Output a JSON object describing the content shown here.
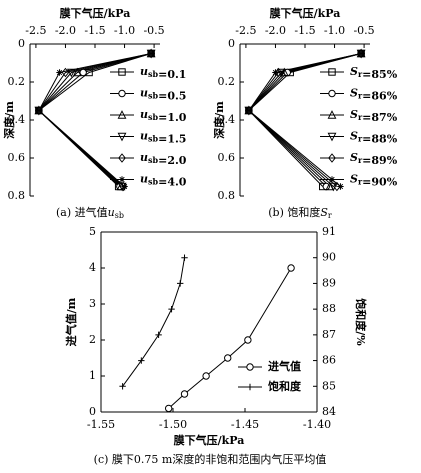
{
  "chart_data": [
    {
      "type": "line",
      "xlabel": "膜下气压/kPa",
      "ylabel": "深度/m",
      "caption": "(a) 进气值usb",
      "xaxis_position": "top",
      "y_inverted": true,
      "xlim": [
        -2.6,
        -0.4
      ],
      "xticks": [
        -2.5,
        {
          "value": -2.0,
          "label": "-2.0"
        },
        -1.5,
        {
          "value": -1.0,
          "label": "-1.0"
        },
        -0.5
      ],
      "ylim": [
        0,
        0.8
      ],
      "yticks": [
        0,
        0.2,
        0.4,
        0.6,
        0.8
      ],
      "series": [
        {
          "name": "usb=0.1",
          "marker": "square",
          "color": "#000000",
          "x": [
            -0.55,
            -1.6,
            -2.45,
            -1.1
          ],
          "values": [
            0.05,
            0.15,
            0.35,
            0.75
          ]
        },
        {
          "name": "usb=0.5",
          "marker": "circle",
          "color": "#000000",
          "x": [
            -0.55,
            -1.7,
            -2.45,
            -1.08
          ],
          "values": [
            0.05,
            0.15,
            0.35,
            0.75
          ]
        },
        {
          "name": "usb=1.0",
          "marker": "triangle-up",
          "color": "#000000",
          "x": [
            -0.55,
            -1.8,
            -2.45,
            -1.06
          ],
          "values": [
            0.05,
            0.15,
            0.35,
            0.75
          ]
        },
        {
          "name": "usb=1.5",
          "marker": "triangle-down",
          "color": "#000000",
          "x": [
            -0.55,
            -1.9,
            -2.45,
            -1.04
          ],
          "values": [
            0.05,
            0.15,
            0.35,
            0.75
          ]
        },
        {
          "name": "usb=2.0",
          "marker": "diamond",
          "color": "#000000",
          "x": [
            -0.55,
            -2.0,
            -2.45,
            -1.02
          ],
          "values": [
            0.05,
            0.15,
            0.35,
            0.75
          ]
        },
        {
          "name": "usb=4.0",
          "marker": "star",
          "color": "#000000",
          "x": [
            -0.55,
            -2.1,
            -2.45,
            -1.0
          ],
          "values": [
            0.05,
            0.15,
            0.35,
            0.75
          ]
        }
      ]
    },
    {
      "type": "line",
      "xlabel": "膜下气压/kPa",
      "ylabel": "深度/m",
      "caption": "(b) 饱和度Sr",
      "xaxis_position": "top",
      "y_inverted": true,
      "xlim": [
        -2.6,
        -0.4
      ],
      "xticks": [
        -2.5,
        {
          "value": -2.0,
          "label": "-2.0"
        },
        -1.5,
        {
          "value": -1.0,
          "label": "-1.0"
        },
        -0.5
      ],
      "ylim": [
        0,
        0.8
      ],
      "yticks": [
        0,
        0.2,
        0.4,
        0.6,
        0.8
      ],
      "series": [
        {
          "name": "Sr=85%",
          "marker": "square",
          "color": "#000000",
          "x": [
            -0.55,
            -1.75,
            -2.45,
            -1.2
          ],
          "values": [
            0.05,
            0.15,
            0.35,
            0.75
          ]
        },
        {
          "name": "Sr=86%",
          "marker": "circle",
          "color": "#000000",
          "x": [
            -0.55,
            -1.8,
            -2.45,
            -1.14
          ],
          "values": [
            0.05,
            0.15,
            0.35,
            0.75
          ]
        },
        {
          "name": "Sr=87%",
          "marker": "triangle-up",
          "color": "#000000",
          "x": [
            -0.55,
            -1.85,
            -2.45,
            -1.08
          ],
          "values": [
            0.05,
            0.15,
            0.35,
            0.75
          ]
        },
        {
          "name": "Sr=88%",
          "marker": "triangle-down",
          "color": "#000000",
          "x": [
            -0.55,
            -1.9,
            -2.45,
            -1.02
          ],
          "values": [
            0.05,
            0.15,
            0.35,
            0.75
          ]
        },
        {
          "name": "Sr=89%",
          "marker": "diamond",
          "color": "#000000",
          "x": [
            -0.55,
            -1.95,
            -2.45,
            -0.96
          ],
          "values": [
            0.05,
            0.15,
            0.35,
            0.75
          ]
        },
        {
          "name": "Sr=90%",
          "marker": "star",
          "color": "#000000",
          "x": [
            -0.55,
            -2.0,
            -2.45,
            -0.9
          ],
          "values": [
            0.05,
            0.15,
            0.35,
            0.75
          ]
        }
      ]
    },
    {
      "type": "line",
      "xlabel": "膜下气压/kPa",
      "ylabel": "进气值/m",
      "y2label": "饱和度/%",
      "caption": "(c) 膜下0.75 m深度的非饱和范围内气压平均值",
      "xaxis_position": "bottom",
      "y_inverted": false,
      "xlim": [
        -1.55,
        -1.4
      ],
      "xticks": [
        -1.55,
        {
          "value": -1.5,
          "label": "-1.50"
        },
        -1.45,
        {
          "value": -1.4,
          "label": "-1.40"
        }
      ],
      "ylim": [
        0,
        5
      ],
      "yticks": [
        0,
        1,
        2,
        3,
        4,
        5
      ],
      "y2lim": [
        84,
        91
      ],
      "y2ticks": [
        84,
        85,
        86,
        87,
        88,
        89,
        90,
        91
      ],
      "series": [
        {
          "name": "进气值",
          "marker": "circle",
          "color": "#000000",
          "x": [
            -1.503,
            -1.492,
            -1.477,
            -1.462,
            -1.448,
            -1.418
          ],
          "values": [
            0.1,
            0.5,
            1.0,
            1.5,
            2.0,
            4.0
          ]
        },
        {
          "name": "饱和度",
          "marker": "plus",
          "color": "#000000",
          "axis": "y2",
          "x": [
            -1.535,
            -1.522,
            -1.51,
            -1.501,
            -1.495,
            -1.492
          ],
          "values": [
            85,
            86,
            87,
            88,
            89,
            90
          ]
        }
      ]
    }
  ]
}
